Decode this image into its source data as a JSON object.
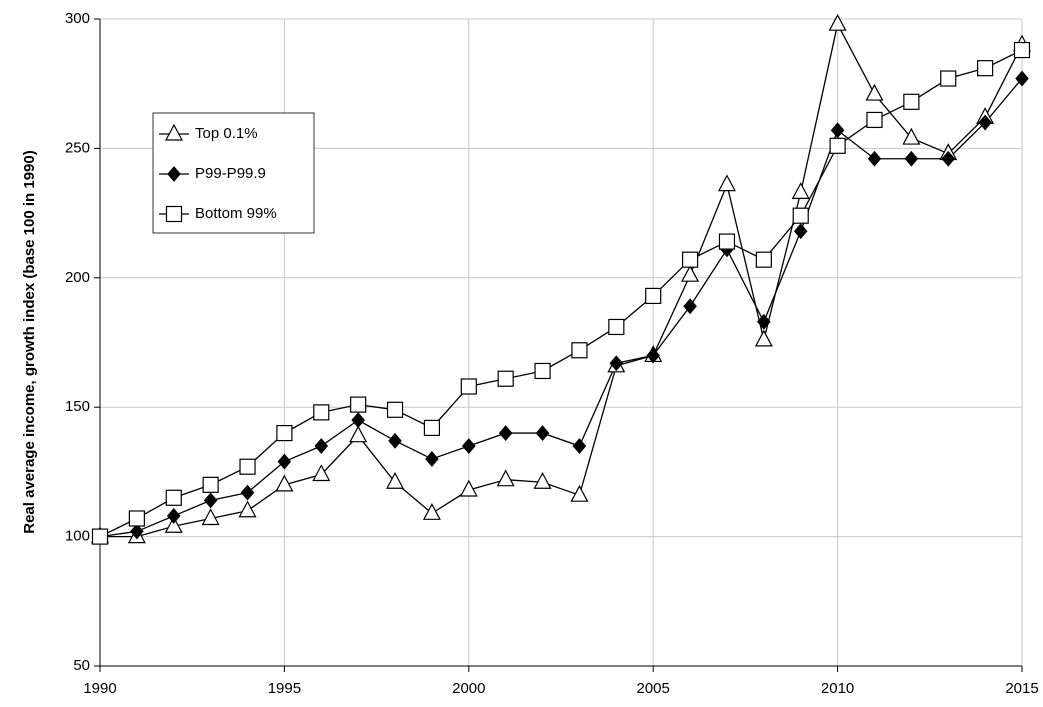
{
  "chart_data": {
    "type": "line",
    "y_label": "Real average income, growth index (base 100 in 1990)",
    "x": [
      1990,
      1991,
      1992,
      1993,
      1994,
      1995,
      1996,
      1997,
      1998,
      1999,
      2000,
      2001,
      2002,
      2003,
      2004,
      2005,
      2006,
      2007,
      2008,
      2009,
      2010,
      2011,
      2012,
      2013,
      2014,
      2015
    ],
    "series": [
      {
        "name": "Top 0.1%",
        "color": "#000000",
        "marker": "triangle",
        "marker_fill": "#ffffff",
        "values": [
          100,
          100,
          104,
          107,
          110,
          120,
          124,
          139,
          121,
          109,
          118,
          122,
          121,
          116,
          166,
          170,
          201,
          236,
          176,
          233,
          298,
          271,
          254,
          248,
          262,
          290
        ]
      },
      {
        "name": "P99-P99.9",
        "color": "#000000",
        "marker": "diamond",
        "marker_fill": "#000000",
        "values": [
          100,
          102,
          108,
          114,
          117,
          129,
          135,
          145,
          137,
          130,
          135,
          140,
          140,
          135,
          167,
          170,
          189,
          211,
          183,
          218,
          257,
          246,
          246,
          246,
          260,
          277
        ]
      },
      {
        "name": "Bottom 99%",
        "color": "#000000",
        "marker": "square",
        "marker_fill": "#ffffff",
        "values": [
          100,
          107,
          115,
          120,
          127,
          140,
          148,
          151,
          149,
          142,
          158,
          161,
          164,
          172,
          181,
          193,
          207,
          214,
          207,
          224,
          251,
          261,
          268,
          277,
          281,
          288
        ]
      }
    ],
    "xlim": [
      1990,
      2015
    ],
    "xticks": [
      1990,
      1995,
      2000,
      2005,
      2010,
      2015
    ],
    "ylim": [
      50,
      300
    ],
    "yticks": [
      50,
      100,
      150,
      200,
      250,
      300
    ],
    "grid": true,
    "legend": "upper left"
  }
}
